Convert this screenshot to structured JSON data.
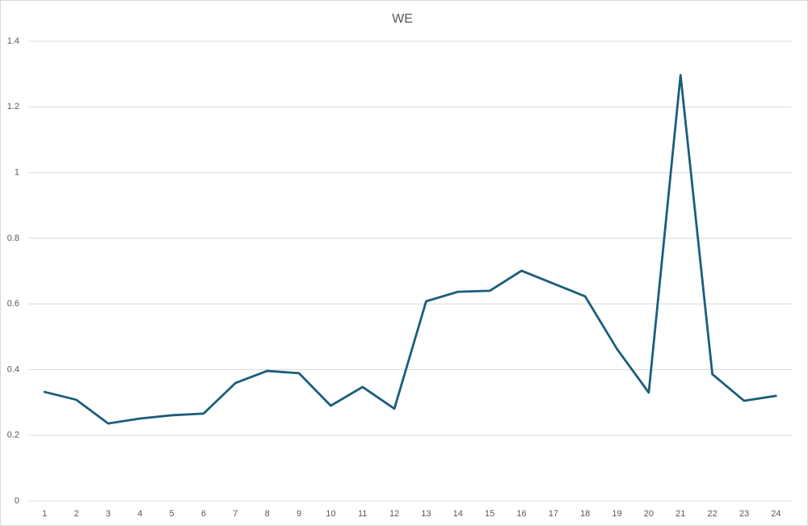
{
  "chart_data": {
    "type": "line",
    "title": "WE",
    "categories": [
      "1",
      "2",
      "3",
      "4",
      "5",
      "6",
      "7",
      "8",
      "9",
      "10",
      "11",
      "12",
      "13",
      "14",
      "15",
      "16",
      "17",
      "18",
      "19",
      "20",
      "21",
      "22",
      "23",
      "24"
    ],
    "series": [
      {
        "name": "WE",
        "color": "#1b5e7b",
        "values": [
          0.332,
          0.308,
          0.236,
          0.251,
          0.261,
          0.266,
          0.359,
          0.396,
          0.389,
          0.29,
          0.347,
          0.281,
          0.608,
          0.637,
          0.64,
          0.701,
          0.662,
          0.623,
          0.463,
          0.33,
          1.297,
          0.386,
          0.305,
          0.32
        ]
      }
    ],
    "ylim": [
      0,
      1.4
    ],
    "yticks": [
      0,
      0.2,
      0.4,
      0.6,
      0.8,
      1,
      1.2,
      1.4
    ],
    "grid": true
  }
}
